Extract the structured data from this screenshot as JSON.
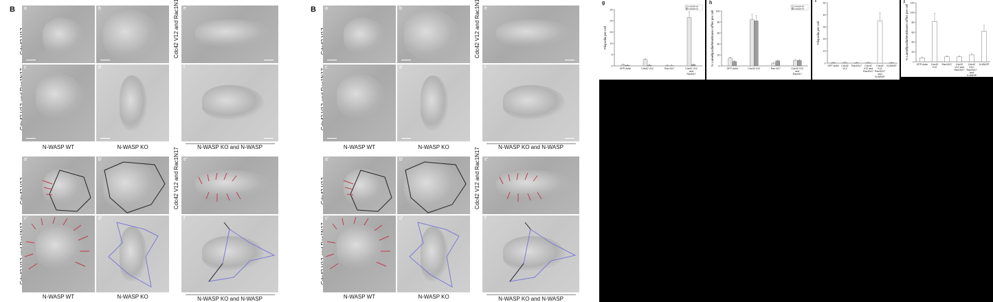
{
  "figure_left": {
    "panel_letter": "B",
    "top": {
      "panel_labels": [
        "a",
        "b",
        "c",
        "d",
        "e",
        "f"
      ],
      "row_labels": [
        "Cdc42 V12",
        "Cdc42 V12 and Rac1N17",
        "Cdc42 V12 and Rac1N17"
      ],
      "col_labels": [
        "N-WASP WT",
        "N-WASP KO",
        "N-WASP KO and N-WASP"
      ]
    },
    "bottom": {
      "panel_labels": [
        "a'",
        "b'",
        "c'",
        "d'",
        "e'",
        "f'"
      ],
      "row_labels": [
        "Cdc42 V12",
        "Cdc42 V12 and Rac1N17",
        "Cdc42 V12 and Rac1N17"
      ],
      "col_labels": [
        "N-WASP WT",
        "N-WASP KO",
        "N-WASP KO and N-WASP"
      ]
    }
  },
  "figure_right": {
    "panel_letter": "B",
    "top": {
      "panel_labels": [
        "a",
        "b",
        "c",
        "d",
        "e",
        "f"
      ],
      "row_labels": [
        "Cdc42 V12",
        "Cdc42 V12 and Rac1N17",
        "Cdc42 V12 and Rac1N17"
      ],
      "col_labels": [
        "N-WASP WT",
        "N-WASP KO",
        "N-WASP KO and N-WASP"
      ]
    },
    "bottom": {
      "panel_labels": [
        "a'",
        "b'",
        "c'",
        "d'",
        "e'",
        "f'"
      ],
      "row_labels": [
        "Cdc42 V12",
        "Cdc42 V12 and Rac1N17",
        "Cdc42 V12 and Rac1N17"
      ],
      "col_labels": [
        "N-WASP WT",
        "N-WASP KO",
        "N-WASP KO and N-WASP"
      ]
    }
  },
  "colors": {
    "red_trace": "#c0394b",
    "blue_trace": "#7a7ad6",
    "outline": "#222222",
    "background": "#ffffff",
    "fill": "#000000"
  },
  "chart_data": [
    {
      "panel": "g",
      "type": "bar",
      "ylabel": "Filopodia per cell",
      "categories": [
        "GFP-Actin",
        "Cdc42 V12",
        "Rac N17",
        "Cdc42 V12 and RacN17"
      ],
      "yticks": [
        "0",
        "5",
        "10",
        "15",
        "20",
        "25"
      ],
      "ylim": [
        0,
        25
      ],
      "legend": [
        "N-WASP WT",
        "N-WASP KO"
      ],
      "series": [
        {
          "name": "N-WASP WT",
          "values": [
            0.5,
            2.8,
            0.1,
            21.5
          ]
        },
        {
          "name": "N-WASP KO",
          "values": [
            0.2,
            0.3,
            0.1,
            0.5
          ]
        }
      ]
    },
    {
      "panel": "h",
      "type": "bar",
      "ylabel": "% Lamellipodia/Membrane ruffles per cell",
      "categories": [
        "GFP-Actin",
        "Cdc42 V12",
        "Rac N17",
        "Cdc42 V12 and RacN17"
      ],
      "yticks": [
        "0",
        "20",
        "40",
        "60",
        "80",
        "100"
      ],
      "ylim": [
        0,
        100
      ],
      "legend": [
        "N-WASP WT",
        "N-WASP KO"
      ],
      "series": [
        {
          "name": "N-WASP WT",
          "values": [
            14,
            84,
            5,
            10
          ]
        },
        {
          "name": "N-WASP KO",
          "values": [
            8,
            82,
            9,
            10
          ]
        }
      ]
    },
    {
      "panel": "i",
      "type": "bar",
      "ylabel": "Filopodia per cell",
      "categories": [
        "GFP-Actin",
        "Cdc42 V12",
        "Rac1N17",
        "Cdc42 V12 and Rac1N17",
        "Cdc42 V12, Rac1N17 and N-WASP",
        "N-WASP"
      ],
      "yticks": [
        "0",
        "10",
        "20",
        "30",
        "40",
        "50"
      ],
      "ylim": [
        0,
        50
      ],
      "values": [
        0.3,
        0.5,
        0.2,
        0.4,
        35,
        0.3
      ]
    },
    {
      "panel": "j",
      "type": "bar",
      "ylabel": "% Lamellipodia/Membrane ruffles per cell",
      "categories": [
        "GFP-Actin",
        "Cdc42 V12",
        "Rac1N17",
        "Cdc42 V12 and Rac1N17",
        "Cdc42 V12, Rac1N17 and N-WASP",
        "N-WASP"
      ],
      "yticks": [
        "0",
        "20",
        "40",
        "60",
        "80",
        "100",
        "120"
      ],
      "ylim": [
        0,
        120
      ],
      "values": [
        8,
        82,
        10,
        10,
        14,
        62
      ]
    }
  ]
}
